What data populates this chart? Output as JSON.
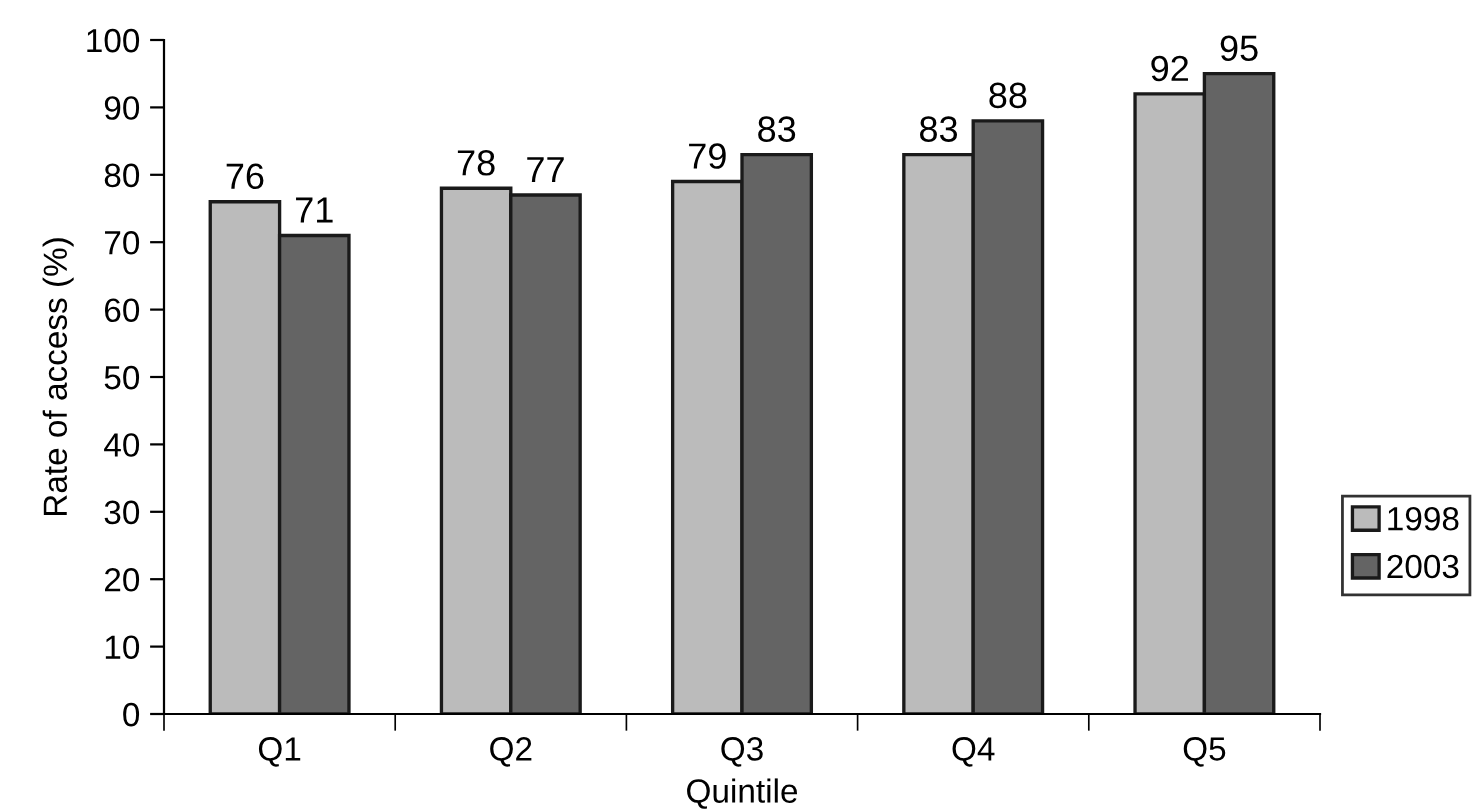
{
  "chart_data": {
    "type": "bar",
    "xlabel": "Quintile",
    "ylabel": "Rate of access (%)",
    "categories": [
      "Q1",
      "Q2",
      "Q3",
      "Q4",
      "Q5"
    ],
    "series": [
      {
        "name": "1998",
        "color": "#bbbbbb",
        "values": [
          76,
          78,
          79,
          83,
          92
        ]
      },
      {
        "name": "2003",
        "color": "#646464",
        "values": [
          71,
          77,
          83,
          88,
          95
        ]
      }
    ],
    "ylim": [
      0,
      100
    ],
    "yticks": [
      0,
      10,
      20,
      30,
      40,
      50,
      60,
      70,
      80,
      90,
      100
    ],
    "data_labels": true,
    "grid": false,
    "legend": "right"
  }
}
